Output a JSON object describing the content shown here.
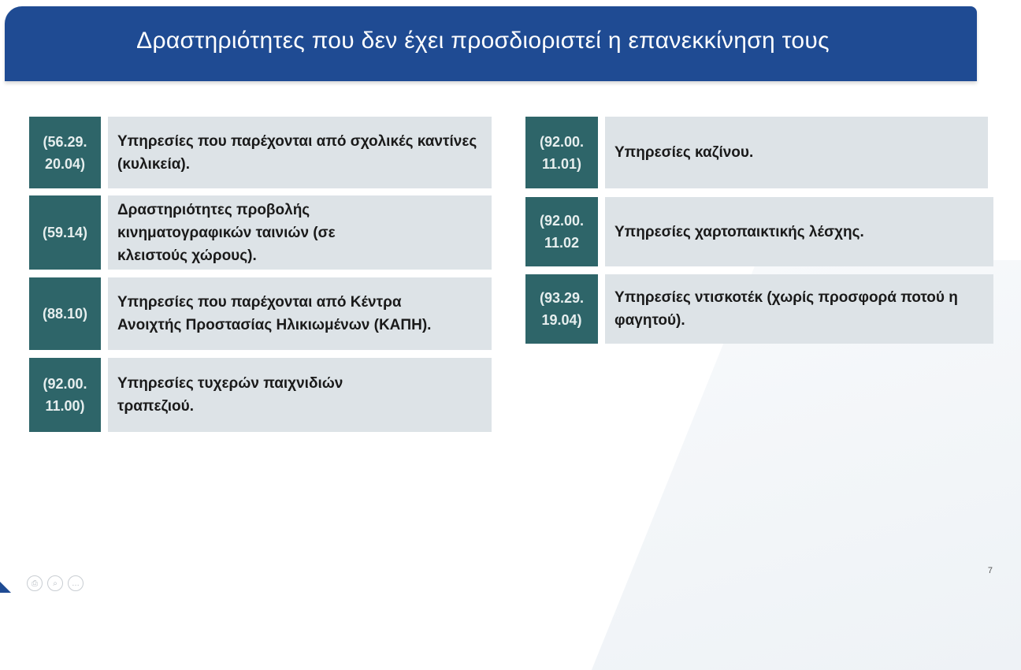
{
  "title": "Δραστηριότητες που δεν έχει προσδιοριστεί η επανεκκίνηση τους",
  "left_items": [
    {
      "code": "(56.29.\n20.04)",
      "text": "Υπηρεσίες που παρέχονται από σχολικές καντίνες (κυλικεία)."
    },
    {
      "code": "(59.14)",
      "text": "Δραστηριότητες προβολής κινηματογραφικών ταινιών (σε κλειστούς χώρους)."
    },
    {
      "code": "(88.10)",
      "text": "Υπηρεσίες που παρέχονται από Κέντρα Ανοιχτής Προστασίας Ηλικιωμένων (ΚΑΠΗ)."
    },
    {
      "code": "(92.00.\n11.00)",
      "text": "Υπηρεσίες τυχερών παιχνιδιών τραπεζιού."
    }
  ],
  "right_items": [
    {
      "code": "(92.00.\n11.01)",
      "text": "Υπηρεσίες καζίνου."
    },
    {
      "code": "(92.00.\n11.02",
      "text": "Υπηρεσίες χαρτοπαικτικής λέσχης."
    },
    {
      "code": "(93.29.\n19.04)",
      "text": "Υπηρεσίες ντισκοτέκ (χωρίς προσφορά ποτού η φαγητού)."
    }
  ],
  "page_number": "7",
  "nav_icons": [
    "print-icon",
    "zoom-icon",
    "more-icon"
  ]
}
